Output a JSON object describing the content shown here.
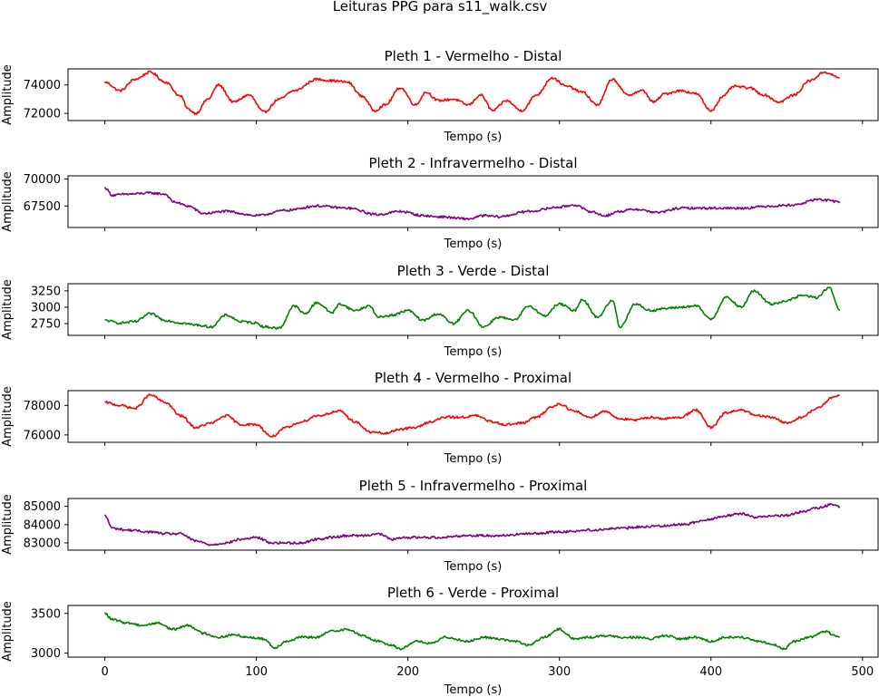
{
  "figure": {
    "title": "Leituras PPG para s11_walk.csv"
  },
  "chart_data": [
    {
      "type": "line",
      "title": "Pleth 1 - Vermelho - Distal",
      "xlabel": "Tempo (s)",
      "ylabel": "Amplitude",
      "color": "#ff0000",
      "xlim": [
        -24.3,
        510.3
      ],
      "ylim": [
        71500,
        75130
      ],
      "yticks": [
        72000,
        74000
      ],
      "ytick_labels": [
        "72000",
        "74000"
      ],
      "show_xtick_labels": false,
      "series": [
        {
          "x": [
            0,
            10,
            20,
            30,
            40,
            50,
            55,
            60,
            68,
            75,
            85,
            95,
            105,
            115,
            125,
            140,
            150,
            160,
            170,
            178,
            185,
            195,
            205,
            212,
            220,
            230,
            240,
            248,
            256,
            265,
            275,
            285,
            295,
            305,
            315,
            325,
            335,
            345,
            355,
            362,
            370,
            380,
            390,
            400,
            408,
            415,
            425,
            435,
            445,
            455,
            465,
            475,
            485
          ],
          "y": [
            74200,
            73600,
            74400,
            74900,
            74200,
            73200,
            72300,
            72000,
            73000,
            74000,
            72800,
            73300,
            72100,
            73000,
            73600,
            74400,
            74300,
            74200,
            73200,
            72200,
            72600,
            73800,
            72600,
            73500,
            72900,
            73000,
            72600,
            73300,
            72200,
            72900,
            72200,
            73300,
            74500,
            73900,
            73500,
            72600,
            74400,
            73300,
            73600,
            72800,
            73400,
            73600,
            73400,
            72200,
            73200,
            73900,
            73800,
            73300,
            72800,
            73300,
            74300,
            74900,
            74500
          ]
        }
      ]
    },
    {
      "type": "line",
      "title": "Pleth 2 - Infravermelho - Distal",
      "xlabel": "Tempo (s)",
      "ylabel": "Amplitude",
      "color": "#800080",
      "xlim": [
        -24.3,
        510.3
      ],
      "ylim": [
        65500,
        70300
      ],
      "yticks": [
        67500,
        70000
      ],
      "ytick_labels": [
        "67500",
        "70000"
      ],
      "show_xtick_labels": false,
      "series": [
        {
          "x": [
            0,
            5,
            15,
            30,
            40,
            45,
            55,
            65,
            80,
            100,
            120,
            140,
            160,
            180,
            195,
            210,
            220,
            240,
            250,
            260,
            280,
            300,
            310,
            320,
            330,
            340,
            350,
            365,
            380,
            400,
            420,
            440,
            455,
            470,
            485
          ],
          "y": [
            69200,
            68500,
            68600,
            68700,
            68600,
            67900,
            67500,
            66800,
            67000,
            66600,
            67100,
            67500,
            67300,
            66700,
            67000,
            66600,
            66500,
            66300,
            66600,
            66500,
            67000,
            67400,
            67600,
            67000,
            66600,
            67000,
            67200,
            66900,
            67300,
            67300,
            67300,
            67500,
            67600,
            68100,
            67900
          ]
        }
      ]
    },
    {
      "type": "line",
      "title": "Pleth 3 - Verde - Distal",
      "xlabel": "Tempo (s)",
      "ylabel": "Amplitude",
      "color": "#008000",
      "xlim": [
        -24.3,
        510.3
      ],
      "ylim": [
        2570,
        3360
      ],
      "yticks": [
        2750,
        3000,
        3250
      ],
      "ytick_labels": [
        "2750",
        "3000",
        "3250"
      ],
      "show_xtick_labels": false,
      "series": [
        {
          "x": [
            0,
            10,
            20,
            30,
            40,
            50,
            60,
            70,
            80,
            90,
            100,
            105,
            115,
            125,
            132,
            140,
            150,
            155,
            165,
            175,
            180,
            190,
            200,
            210,
            220,
            230,
            240,
            250,
            260,
            270,
            280,
            290,
            300,
            310,
            315,
            325,
            335,
            340,
            350,
            360,
            370,
            380,
            390,
            400,
            410,
            420,
            428,
            440,
            450,
            460,
            470,
            478,
            485
          ],
          "y": [
            2800,
            2760,
            2780,
            2900,
            2800,
            2760,
            2730,
            2700,
            2880,
            2780,
            2760,
            2700,
            2680,
            3020,
            2900,
            3070,
            2920,
            3050,
            2950,
            3020,
            2850,
            2880,
            2950,
            2800,
            2900,
            2750,
            2950,
            2700,
            2850,
            2800,
            3020,
            2870,
            3050,
            2950,
            3120,
            2850,
            3100,
            2700,
            3050,
            2950,
            2980,
            3000,
            3020,
            2820,
            3150,
            3000,
            3250,
            3050,
            3100,
            3180,
            3150,
            3300,
            2950
          ]
        }
      ]
    },
    {
      "type": "line",
      "title": "Pleth 4 - Vermelho - Proximal",
      "xlabel": "Tempo (s)",
      "ylabel": "Amplitude",
      "color": "#ff0000",
      "xlim": [
        -24.3,
        510.3
      ],
      "ylim": [
        75500,
        79000
      ],
      "yticks": [
        76000,
        78000
      ],
      "ytick_labels": [
        "76000",
        "78000"
      ],
      "show_xtick_labels": false,
      "series": [
        {
          "x": [
            0,
            10,
            20,
            30,
            40,
            50,
            60,
            70,
            80,
            90,
            100,
            110,
            120,
            130,
            140,
            155,
            165,
            175,
            185,
            195,
            205,
            215,
            225,
            235,
            245,
            255,
            265,
            275,
            285,
            295,
            300,
            310,
            320,
            330,
            340,
            350,
            360,
            370,
            380,
            390,
            400,
            410,
            420,
            430,
            440,
            450,
            460,
            470,
            480,
            485
          ],
          "y": [
            78200,
            78000,
            77800,
            78700,
            78200,
            77300,
            76500,
            76800,
            77300,
            76700,
            76700,
            75900,
            76500,
            76900,
            77300,
            77600,
            76900,
            76200,
            76100,
            76400,
            76500,
            76900,
            77200,
            77200,
            77300,
            76900,
            76700,
            76800,
            77200,
            77900,
            78100,
            77600,
            77200,
            77600,
            77100,
            77000,
            77200,
            77100,
            77200,
            77700,
            76500,
            77500,
            77700,
            77300,
            77200,
            76800,
            77200,
            77800,
            78500,
            78700
          ]
        }
      ]
    },
    {
      "type": "line",
      "title": "Pleth 5 - Infravermelho - Proximal",
      "xlabel": "Tempo (s)",
      "ylabel": "Amplitude",
      "color": "#800080",
      "xlim": [
        -24.3,
        510.3
      ],
      "ylim": [
        82600,
        85430
      ],
      "yticks": [
        83000,
        84000,
        85000
      ],
      "ytick_labels": [
        "83000",
        "84000",
        "85000"
      ],
      "show_xtick_labels": false,
      "series": [
        {
          "x": [
            0,
            5,
            15,
            30,
            40,
            50,
            60,
            70,
            80,
            90,
            100,
            110,
            120,
            130,
            140,
            150,
            160,
            170,
            180,
            190,
            200,
            210,
            220,
            240,
            260,
            280,
            300,
            320,
            340,
            360,
            380,
            400,
            410,
            420,
            430,
            440,
            450,
            460,
            470,
            480,
            485
          ],
          "y": [
            84500,
            83800,
            83700,
            83600,
            83500,
            83500,
            83100,
            82900,
            83000,
            83200,
            83300,
            83000,
            83000,
            83000,
            83200,
            83300,
            83400,
            83400,
            83500,
            83200,
            83300,
            83300,
            83300,
            83400,
            83400,
            83500,
            83600,
            83700,
            83800,
            83900,
            84000,
            84300,
            84500,
            84600,
            84400,
            84500,
            84500,
            84700,
            84900,
            85100,
            85000
          ]
        }
      ]
    },
    {
      "type": "line",
      "title": "Pleth 6 - Verde - Proximal",
      "xlabel": "Tempo (s)",
      "ylabel": "Amplitude",
      "color": "#008000",
      "xlim": [
        -24.3,
        510.3
      ],
      "ylim": [
        2950,
        3600
      ],
      "yticks": [
        3000,
        3500
      ],
      "ytick_labels": [
        "3000",
        "3500"
      ],
      "xticks": [
        0,
        100,
        200,
        300,
        400,
        500
      ],
      "xtick_labels": [
        "0",
        "100",
        "200",
        "300",
        "400",
        "500"
      ],
      "show_xtick_labels": true,
      "series": [
        {
          "x": [
            0,
            5,
            15,
            25,
            35,
            45,
            55,
            65,
            75,
            85,
            95,
            105,
            112,
            120,
            130,
            140,
            150,
            160,
            170,
            180,
            190,
            195,
            205,
            215,
            225,
            240,
            250,
            260,
            270,
            280,
            290,
            300,
            310,
            320,
            330,
            340,
            350,
            360,
            370,
            380,
            390,
            400,
            410,
            420,
            430,
            440,
            448,
            455,
            465,
            475,
            485
          ],
          "y": [
            3500,
            3420,
            3380,
            3350,
            3380,
            3300,
            3350,
            3250,
            3200,
            3230,
            3200,
            3180,
            3070,
            3150,
            3200,
            3200,
            3280,
            3300,
            3220,
            3150,
            3100,
            3050,
            3150,
            3120,
            3200,
            3150,
            3200,
            3180,
            3150,
            3100,
            3200,
            3300,
            3180,
            3200,
            3220,
            3200,
            3200,
            3180,
            3220,
            3180,
            3200,
            3150,
            3200,
            3200,
            3150,
            3120,
            3050,
            3150,
            3200,
            3270,
            3200
          ]
        }
      ]
    }
  ]
}
